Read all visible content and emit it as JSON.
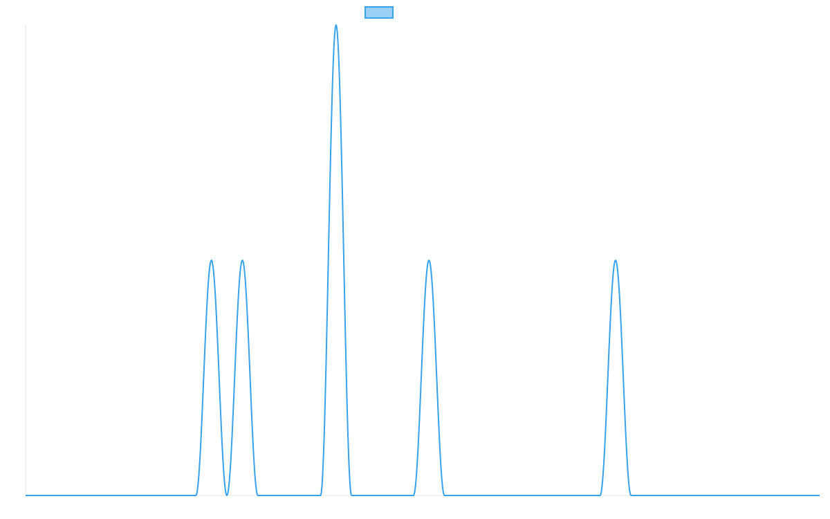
{
  "chart_data": {
    "type": "line",
    "title": "",
    "xlabel": "",
    "ylabel": "",
    "grid": false,
    "legend": {
      "placement": "top-center",
      "entries": [
        {
          "name": "",
          "color": "#36a2eb",
          "fill": "#9ad0f5"
        }
      ]
    },
    "xlim": [
      0,
      1
    ],
    "ylim": [
      0,
      1
    ],
    "series": [
      {
        "name": "",
        "color": "#36a2eb",
        "peaks": [
          {
            "center": 0.234,
            "height": 0.5,
            "half_width": 0.0195
          },
          {
            "center": 0.273,
            "height": 0.5,
            "half_width": 0.0195
          },
          {
            "center": 0.391,
            "height": 1.0,
            "half_width": 0.0195
          },
          {
            "center": 0.508,
            "height": 0.5,
            "half_width": 0.0195
          },
          {
            "center": 0.743,
            "height": 0.5,
            "half_width": 0.0195
          }
        ]
      }
    ]
  }
}
